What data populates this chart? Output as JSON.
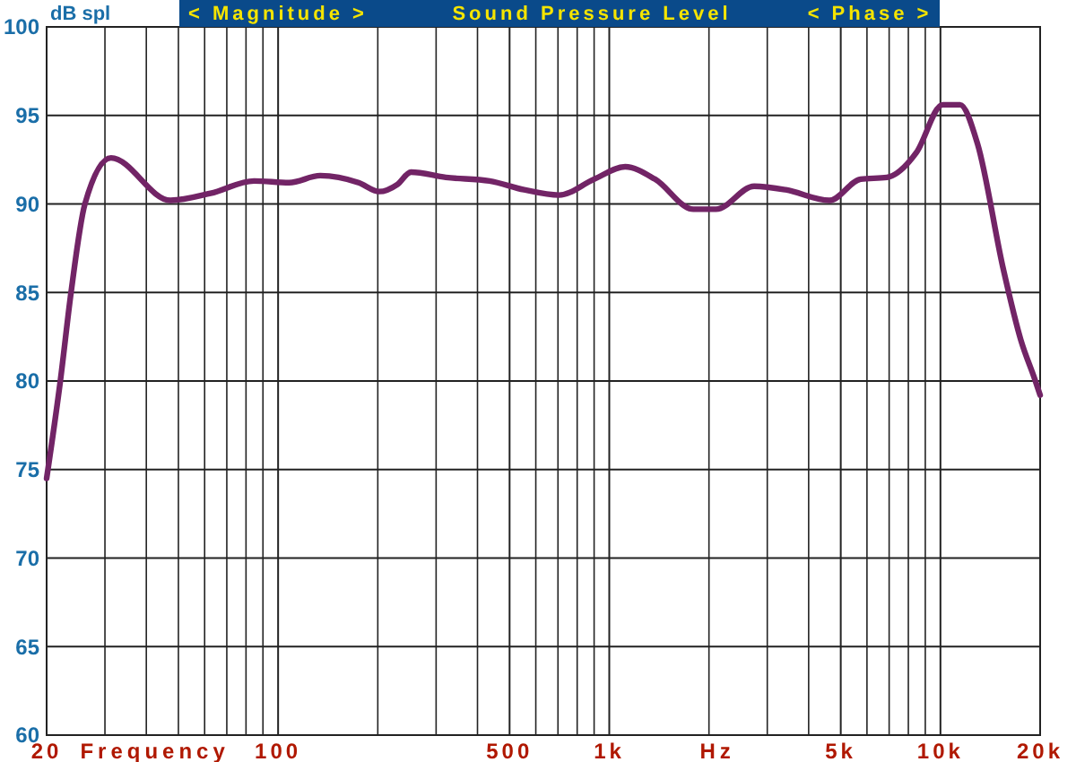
{
  "chart_data": {
    "type": "line",
    "title": "Sound Pressure Level",
    "ylabel": "dB spl",
    "xlabel": "Frequency",
    "annotations": [
      "< Magnitude >",
      "< Phase >",
      "Hz"
    ],
    "log": "x",
    "grid": true,
    "marker": "none",
    "line_style": "solid",
    "xlim": [
      20,
      20000
    ],
    "ylim": [
      60,
      100
    ],
    "xticks": [
      20,
      {
        "value": 30,
        "label": null
      },
      {
        "value": 40,
        "label": null
      },
      {
        "value": 50,
        "label": null
      },
      {
        "value": 60,
        "label": null
      },
      {
        "value": 70,
        "label": null
      },
      {
        "value": 80,
        "label": null
      },
      {
        "value": 90,
        "label": null
      },
      100,
      {
        "value": 200,
        "label": null
      },
      {
        "value": 300,
        "label": null
      },
      {
        "value": 400,
        "label": null
      },
      500,
      {
        "value": 600,
        "label": null
      },
      {
        "value": 700,
        "label": null
      },
      {
        "value": 800,
        "label": null
      },
      {
        "value": 900,
        "label": null
      },
      {
        "value": 1000,
        "label": "1k"
      },
      {
        "value": 2000,
        "label": null
      },
      {
        "value": 3000,
        "label": null
      },
      {
        "value": 4000,
        "label": null
      },
      {
        "value": 5000,
        "label": "5k"
      },
      {
        "value": 6000,
        "label": null
      },
      {
        "value": 7000,
        "label": null
      },
      {
        "value": 8000,
        "label": null
      },
      {
        "value": 9000,
        "label": null
      },
      {
        "value": 10000,
        "label": "10k"
      },
      {
        "value": 20000,
        "label": "20k"
      }
    ],
    "yticks": [
      60,
      65,
      70,
      75,
      80,
      85,
      90,
      95,
      100
    ],
    "series": [
      {
        "color": "#722466",
        "x": [
          20,
          22,
          23.7,
          26.1,
          31.3,
          47.3,
          62.5,
          84.6,
          108,
          134,
          175,
          202,
          229,
          252,
          321,
          435,
          553,
          705,
          900,
          1117,
          1374,
          1795,
          2100,
          2740,
          3410,
          4620,
          5740,
          6890,
          8460,
          10150,
          11460,
          12940,
          15490,
          17500,
          19270,
          20000
        ],
        "values": [
          74.5,
          80,
          85,
          90,
          92.6,
          90.2,
          90.6,
          91.3,
          91.2,
          91.6,
          91.2,
          90.7,
          91.1,
          91.8,
          91.5,
          91.3,
          90.8,
          90.5,
          91.4,
          92.1,
          91.4,
          89.7,
          89.7,
          91,
          90.8,
          90.2,
          91.4,
          91.5,
          92.9,
          95.6,
          95.6,
          93.4,
          86.3,
          82.3,
          80.1,
          79.2
        ]
      }
    ]
  }
}
